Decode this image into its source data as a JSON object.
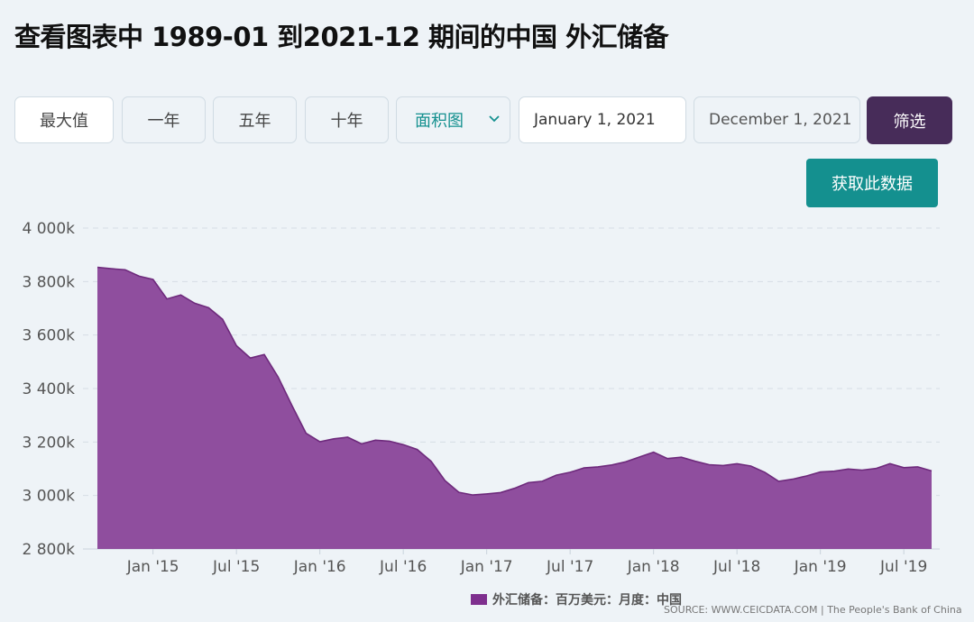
{
  "page": {
    "title": "查看图表中 1989-01 到2021-12 期间的中国 外汇储备"
  },
  "controls": {
    "range_buttons": [
      "最大值",
      "一年",
      "五年",
      "十年"
    ],
    "chart_type_select": "面积图",
    "start_date": "January 1, 2021",
    "end_date": "December 1, 2021",
    "filter_label": "筛选",
    "get_data_label": "获取此数据"
  },
  "legend": {
    "label": "外汇储备：百万美元：月度：中国",
    "color": "#7e2f8e"
  },
  "source": "SOURCE: WWW.CEICDATA.COM | The People's Bank of China",
  "colors": {
    "area_fill": "#8f4e9e",
    "area_stroke": "#6e2a7c",
    "accent_teal": "#14908f",
    "filter_purple": "#472c59"
  },
  "chart_data": {
    "type": "area",
    "y_ticks": [
      "4 000k",
      "3 800k",
      "3 600k",
      "3 400k",
      "3 200k",
      "3 000k",
      "2 800k"
    ],
    "y_tick_values": [
      4000000,
      3800000,
      3600000,
      3400000,
      3200000,
      3000000,
      2800000
    ],
    "ylim": [
      2800000,
      4000000
    ],
    "x_ticks": [
      "Jan '15",
      "Jul '15",
      "Jan '16",
      "Jul '16",
      "Jan '17",
      "Jul '17",
      "Jan '18",
      "Jul '18",
      "Jan '19",
      "Jul '19"
    ],
    "x_tick_dates": [
      "2015-01",
      "2015-07",
      "2016-01",
      "2016-07",
      "2017-01",
      "2017-07",
      "2018-01",
      "2018-07",
      "2019-01",
      "2019-07"
    ],
    "grid": true,
    "series": [
      {
        "name": "外汇储备：百万美元：月度：中国",
        "x": [
          "2014-09",
          "2014-10",
          "2014-11",
          "2014-12",
          "2015-01",
          "2015-02",
          "2015-03",
          "2015-04",
          "2015-05",
          "2015-06",
          "2015-07",
          "2015-08",
          "2015-09",
          "2015-10",
          "2015-11",
          "2015-12",
          "2016-01",
          "2016-02",
          "2016-03",
          "2016-04",
          "2016-05",
          "2016-06",
          "2016-07",
          "2016-08",
          "2016-09",
          "2016-10",
          "2016-11",
          "2016-12",
          "2017-01",
          "2017-02",
          "2017-03",
          "2017-04",
          "2017-05",
          "2017-06",
          "2017-07",
          "2017-08",
          "2017-09",
          "2017-10",
          "2017-11",
          "2017-12",
          "2018-01",
          "2018-02",
          "2018-03",
          "2018-04",
          "2018-05",
          "2018-06",
          "2018-07",
          "2018-08",
          "2018-09",
          "2018-10",
          "2018-11",
          "2018-12",
          "2019-01",
          "2019-02",
          "2019-03",
          "2019-04",
          "2019-05",
          "2019-06",
          "2019-07",
          "2019-08",
          "2019-09"
        ],
        "values": [
          3853000,
          3848000,
          3844000,
          3820000,
          3808000,
          3735000,
          3750000,
          3719000,
          3702000,
          3659000,
          3560000,
          3514000,
          3527000,
          3443000,
          3336000,
          3233000,
          3201000,
          3212000,
          3218000,
          3193000,
          3207000,
          3203000,
          3190000,
          3172000,
          3128000,
          3056000,
          3012000,
          3002000,
          3006000,
          3011000,
          3027000,
          3048000,
          3053000,
          3076000,
          3087000,
          3103000,
          3107000,
          3114000,
          3126000,
          3144000,
          3162000,
          3138000,
          3143000,
          3128000,
          3115000,
          3112000,
          3119000,
          3110000,
          3087000,
          3053000,
          3061000,
          3073000,
          3088000,
          3091000,
          3099000,
          3095000,
          3101000,
          3119000,
          3104000,
          3107000,
          3092000
        ]
      }
    ]
  }
}
